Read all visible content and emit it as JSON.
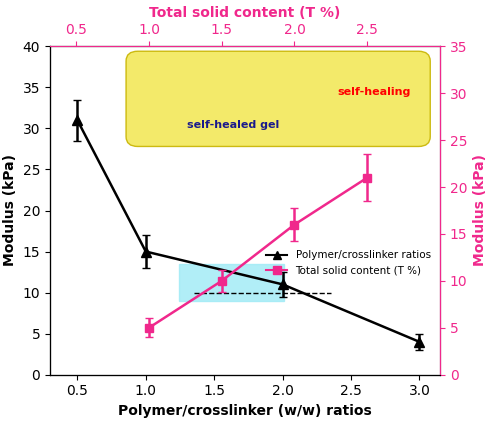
{
  "chart_data": {
    "type": "line",
    "xlabel": "Polymer/crosslinker (w/w) ratios",
    "x2label": "Total solid content (T %)",
    "ylabel": "Modulus (kPa)",
    "y2label": "Modulus (kPa)",
    "xlim": [
      0.3,
      3.15
    ],
    "xticks": [
      {
        "value": 0.5,
        "label": "0.5"
      },
      {
        "value": 1.0,
        "label": "1.0"
      },
      {
        "value": 1.5,
        "label": "1.5"
      },
      {
        "value": 2.0,
        "label": "2.0"
      },
      {
        "value": 2.5,
        "label": "2.5"
      },
      {
        "value": 3.0,
        "label": "3.0"
      }
    ],
    "x2lim": [
      0.32,
      3.0
    ],
    "x2ticks": [
      {
        "value": 0.5,
        "label": "0.5"
      },
      {
        "value": 1.0,
        "label": "1.0"
      },
      {
        "value": 1.5,
        "label": "1.5"
      },
      {
        "value": 2.0,
        "label": "2.0"
      },
      {
        "value": 2.5,
        "label": "2.5"
      }
    ],
    "ylim": [
      0,
      40
    ],
    "yticks": [
      0,
      5,
      10,
      15,
      20,
      25,
      30,
      35,
      40
    ],
    "y2lim": [
      0,
      35
    ],
    "y2ticks": [
      0,
      5,
      10,
      15,
      20,
      25,
      30,
      35
    ],
    "reference_line": 10,
    "highlight_band": [
      9,
      13.5
    ],
    "legend": "center right",
    "annotations": [
      "self-healing",
      "self-healed gel"
    ],
    "series": [
      {
        "name": "Polymer/crosslinker ratios",
        "color": "#000000",
        "marker": "triangle",
        "line_style": "solid",
        "x": [
          0.5,
          1.0,
          2.0,
          3.0
        ],
        "values": [
          31,
          15,
          11,
          4
        ],
        "errors": [
          2.5,
          2,
          1.5,
          1
        ]
      },
      {
        "name": "Total solid content (T %)",
        "color": "#f0288c",
        "marker": "square",
        "line_style": "solid",
        "axis": "y2",
        "x": [
          1.0,
          1.5,
          2.0,
          2.5
        ],
        "values": [
          5,
          10,
          16,
          21
        ],
        "errors": [
          1,
          1.2,
          1.8,
          2.5
        ]
      }
    ]
  }
}
